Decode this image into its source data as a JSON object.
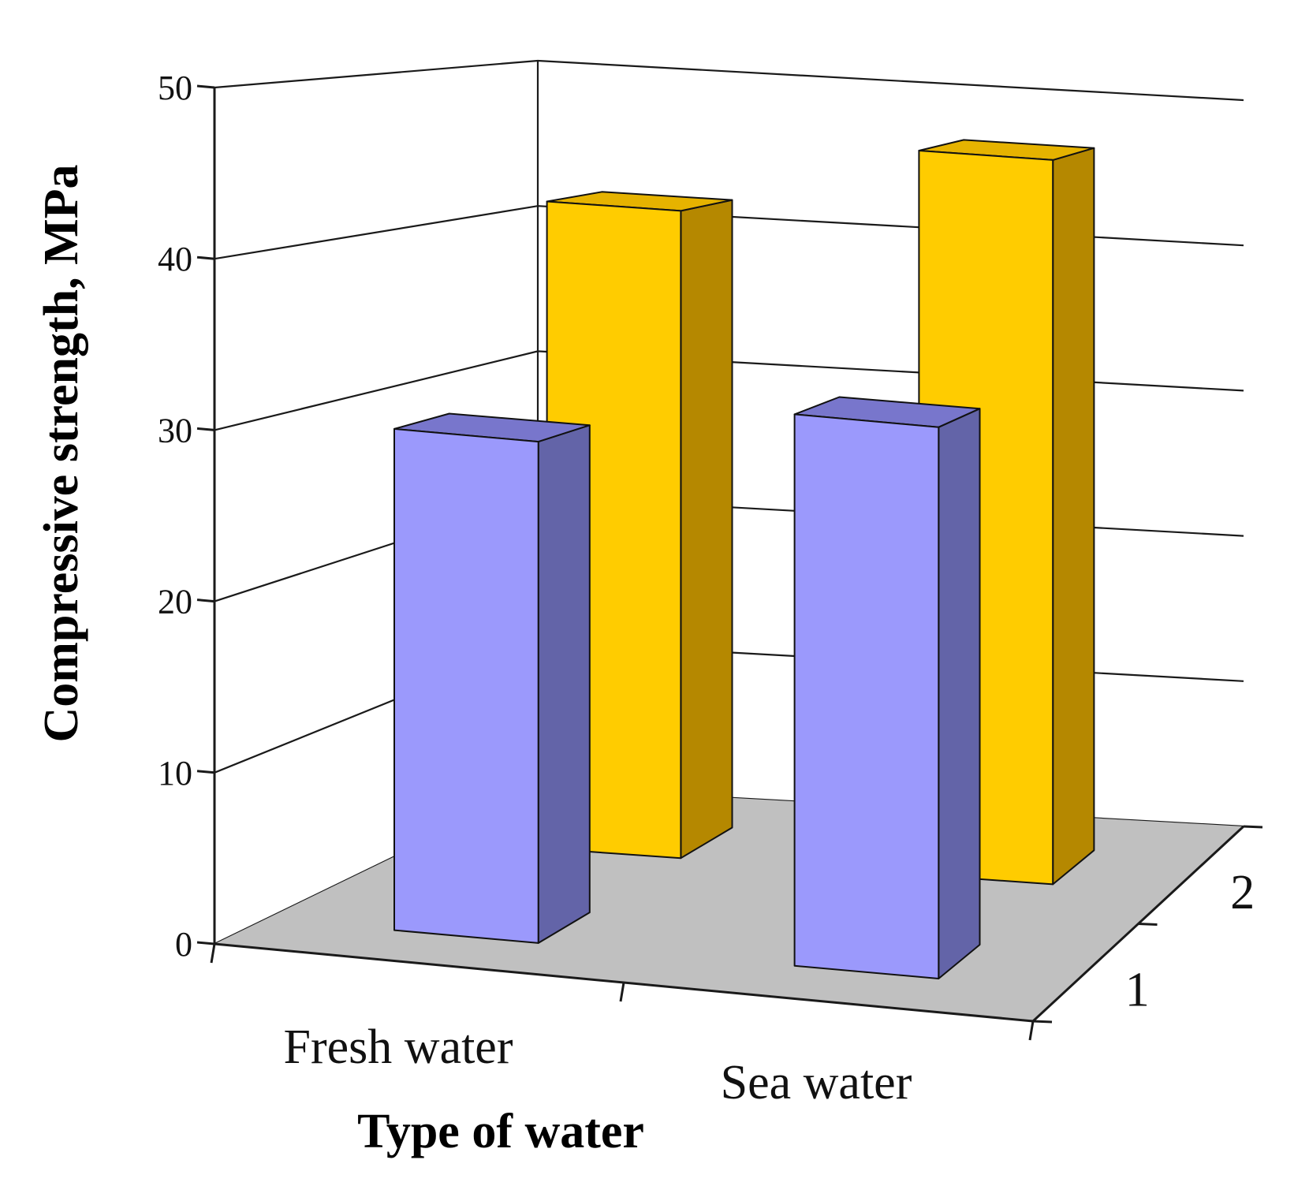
{
  "chart_data": {
    "type": "bar",
    "subtype": "3d-clustered-depth",
    "title": "",
    "xlabel": "Type of water",
    "ylabel": "Compressive strength, MPa",
    "categories": [
      "Fresh water",
      "Sea water"
    ],
    "depth_labels": [
      "1",
      "2"
    ],
    "ylim": [
      0,
      50
    ],
    "yticks": [
      0,
      10,
      20,
      30,
      40,
      50
    ],
    "grid": true,
    "series": [
      {
        "name": "1",
        "values": [
          30,
          33
        ],
        "colors": {
          "front": "#9b99fc",
          "top": "#7876cc",
          "side": "#6364a8"
        }
      },
      {
        "name": "2",
        "values": [
          42,
          47
        ],
        "colors": {
          "front": "#ffcc00",
          "top": "#e6b300",
          "side": "#b58800"
        }
      }
    ],
    "floor_color": "#c0c0c0"
  }
}
